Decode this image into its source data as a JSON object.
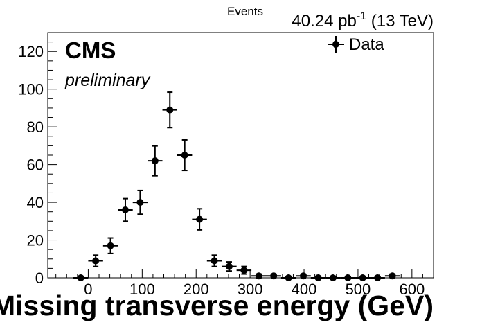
{
  "chart_data": {
    "type": "scatter",
    "title": "",
    "xlabel": "Missing transverse energy (GeV)",
    "ylabel": "Events",
    "lumi_label": "40.24 pb",
    "lumi_exponent": "-1",
    "lumi_energy": " (13 TeV)",
    "experiment": "CMS",
    "status": "preliminary",
    "xlim": [
      -75,
      640
    ],
    "ylim": [
      0,
      130
    ],
    "x_ticks": [
      0,
      100,
      200,
      300,
      400,
      500,
      600
    ],
    "y_ticks": [
      0,
      20,
      40,
      60,
      80,
      100,
      120
    ],
    "grid": false,
    "legend": {
      "position": "top-right",
      "entries": [
        "Data"
      ]
    },
    "bin_half_width": 13.75,
    "series": [
      {
        "name": "Data",
        "color": "#000000",
        "points": [
          {
            "x": -13.75,
            "y": 0,
            "err": 0
          },
          {
            "x": 13.75,
            "y": 9,
            "err": 3.0
          },
          {
            "x": 41.25,
            "y": 17,
            "err": 4.1
          },
          {
            "x": 68.75,
            "y": 36,
            "err": 6.0
          },
          {
            "x": 96.25,
            "y": 40,
            "err": 6.3
          },
          {
            "x": 123.75,
            "y": 62,
            "err": 7.9
          },
          {
            "x": 151.25,
            "y": 89,
            "err": 9.4
          },
          {
            "x": 178.75,
            "y": 65,
            "err": 8.1
          },
          {
            "x": 206.25,
            "y": 31,
            "err": 5.6
          },
          {
            "x": 233.75,
            "y": 9,
            "err": 3.0
          },
          {
            "x": 261.25,
            "y": 6,
            "err": 2.4
          },
          {
            "x": 288.75,
            "y": 4,
            "err": 2.0
          },
          {
            "x": 316.25,
            "y": 1,
            "err": 1.0
          },
          {
            "x": 343.75,
            "y": 1,
            "err": 1.0
          },
          {
            "x": 371.25,
            "y": 0,
            "err": 0
          },
          {
            "x": 398.75,
            "y": 1,
            "err": 1.0
          },
          {
            "x": 426.25,
            "y": 0,
            "err": 0
          },
          {
            "x": 453.75,
            "y": 0,
            "err": 0
          },
          {
            "x": 481.25,
            "y": 0,
            "err": 0
          },
          {
            "x": 508.75,
            "y": 0,
            "err": 0
          },
          {
            "x": 536.25,
            "y": 0,
            "err": 0
          },
          {
            "x": 563.75,
            "y": 1,
            "err": 1.0
          }
        ]
      }
    ]
  }
}
